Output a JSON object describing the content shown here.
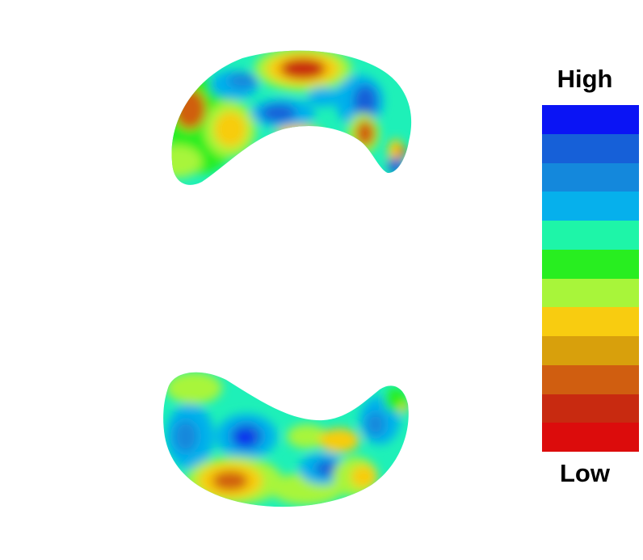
{
  "legend": {
    "high_label": "High",
    "low_label": "Low",
    "colors": [
      "#0a14f5",
      "#1660d8",
      "#1488dc",
      "#06b0ec",
      "#1ef5a8",
      "#28ee20",
      "#a8f53a",
      "#f8cc10",
      "#d8a00c",
      "#d05e10",
      "#c82a10",
      "#dc0c0c"
    ]
  },
  "shapes": [
    {
      "name": "upper-surface",
      "description_colors": [
        "#00c0e8",
        "#1ef5a8",
        "#28ee20",
        "#a8f53a",
        "#f8cc10",
        "#d05e10",
        "#1660d8"
      ]
    },
    {
      "name": "lower-surface",
      "description_colors": [
        "#00c0e8",
        "#1ef5a8",
        "#28ee20",
        "#a8f53a",
        "#f8cc10",
        "#d05e10",
        "#1660d8"
      ]
    }
  ]
}
